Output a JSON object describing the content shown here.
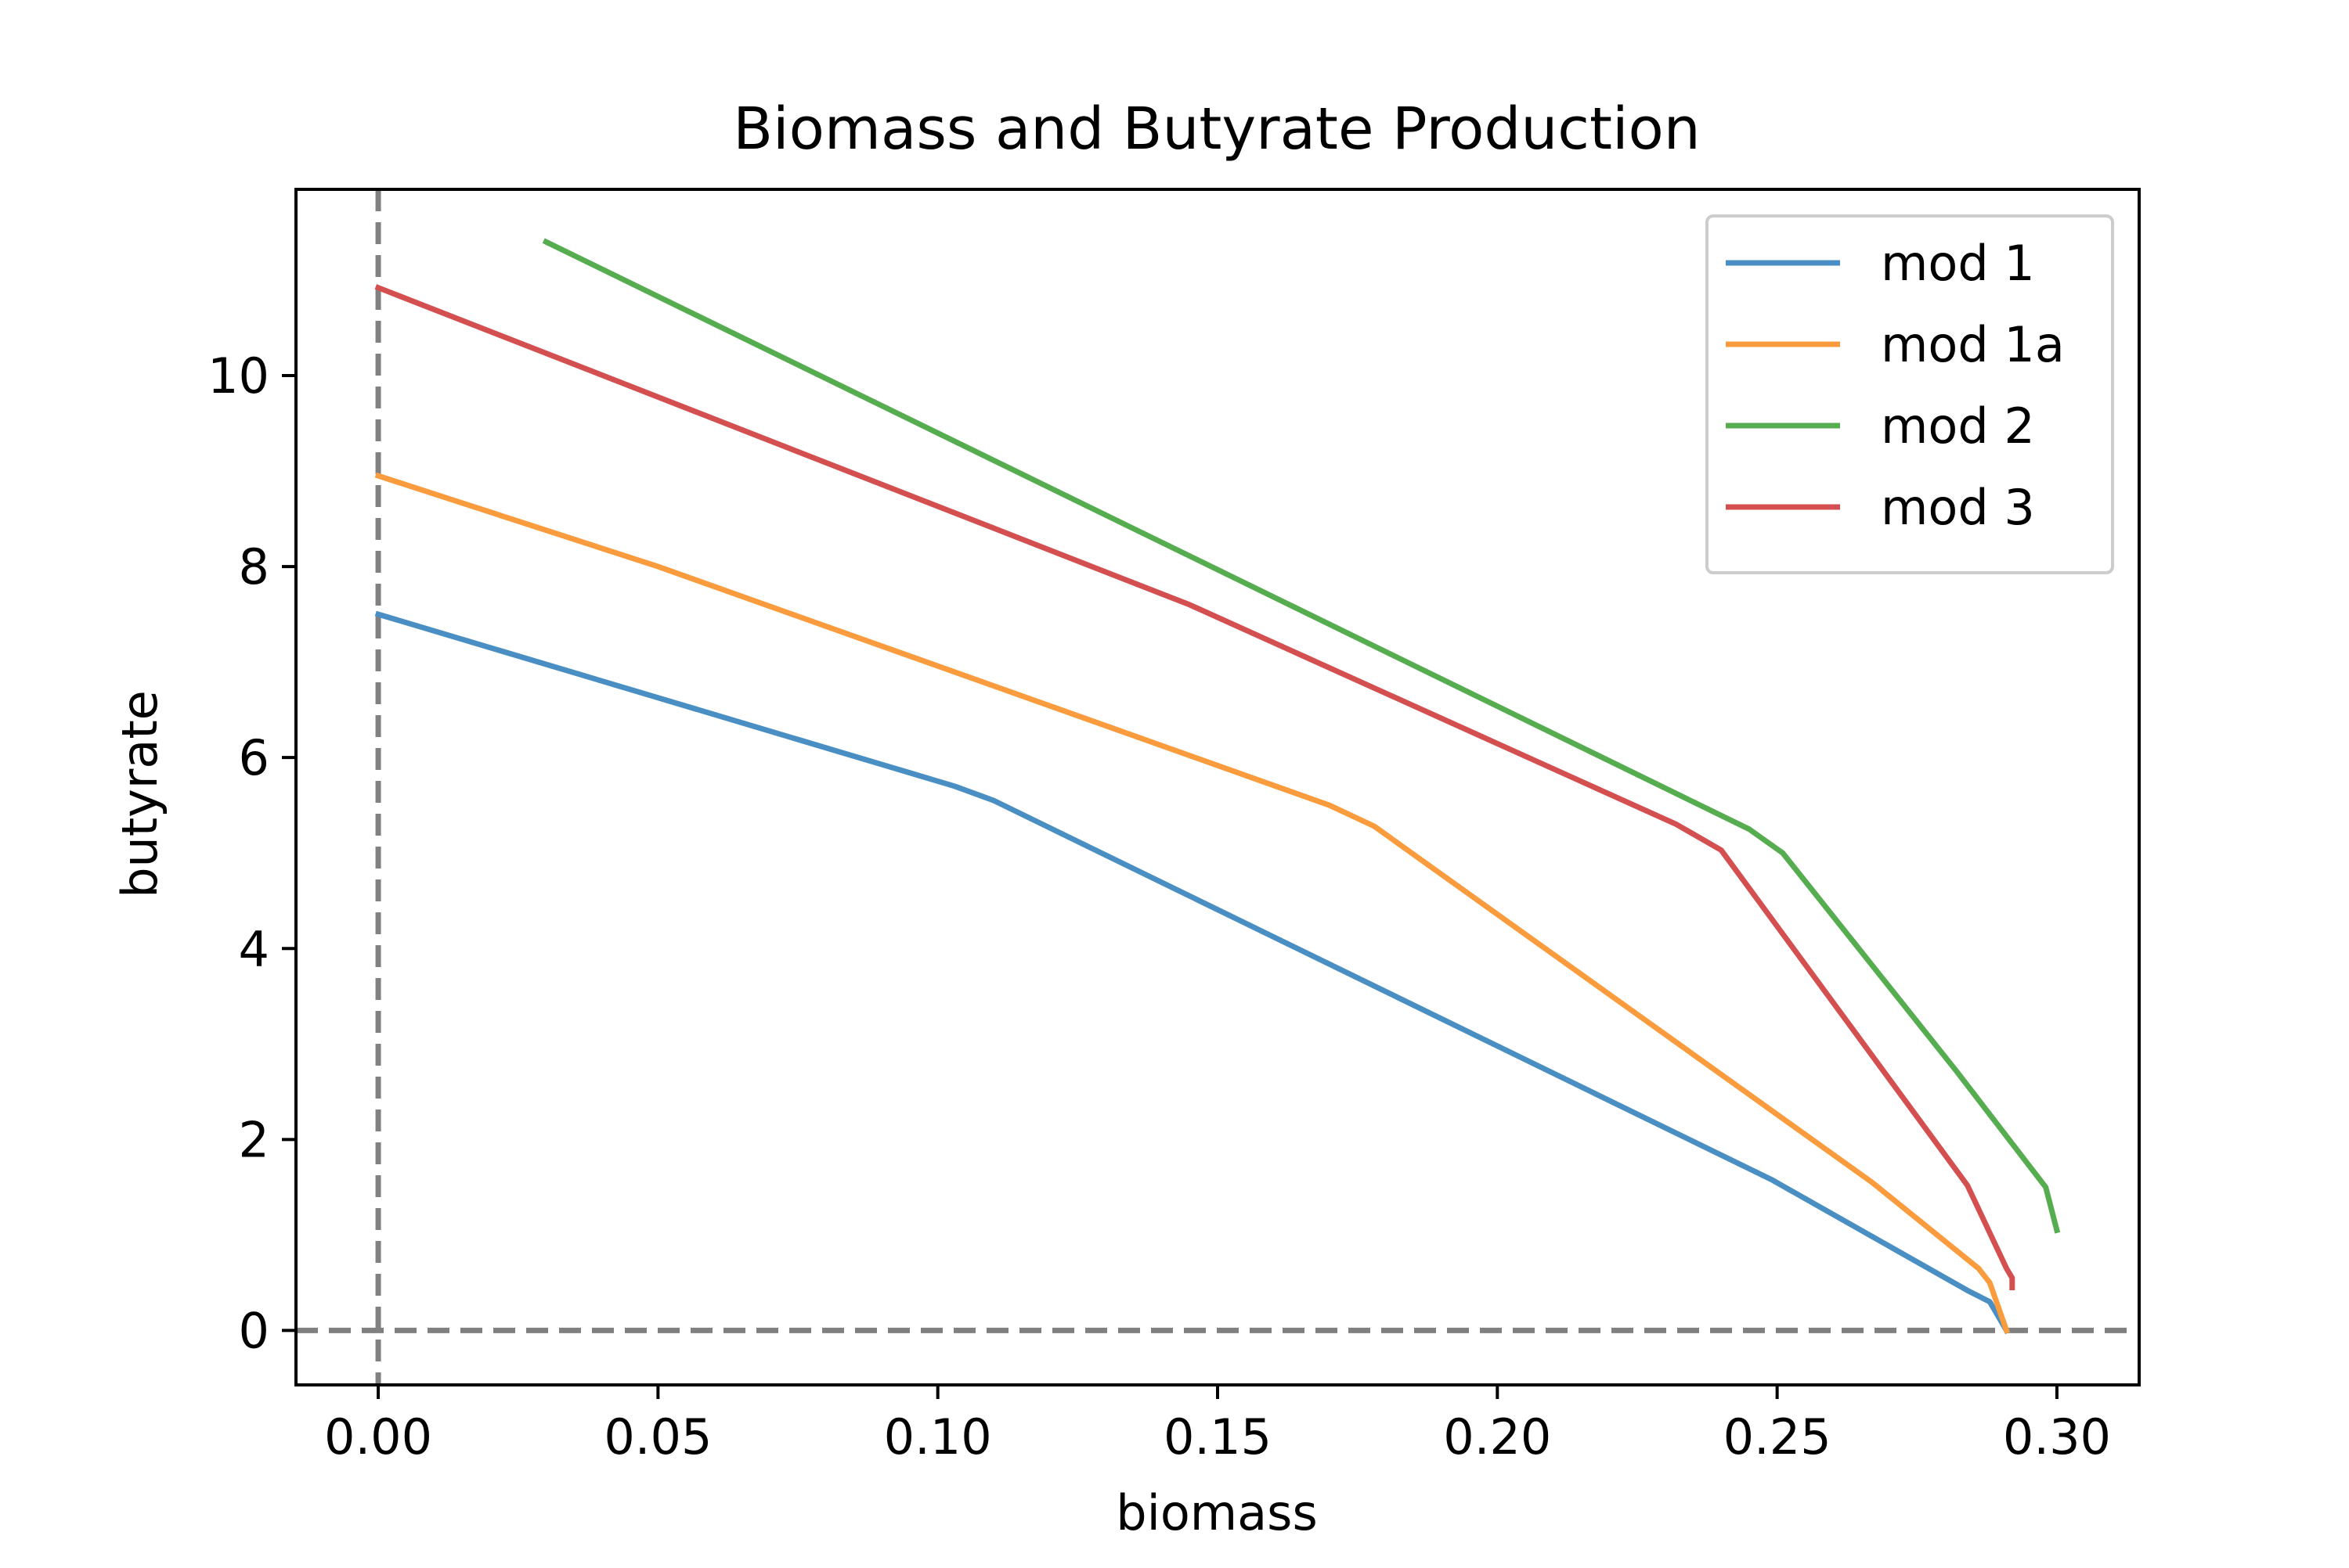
{
  "chart_data": {
    "type": "line",
    "title": "Biomass and Butyrate Production",
    "xlabel": "biomass",
    "ylabel": "butyrate",
    "xlim": [
      -0.0147,
      0.3147
    ],
    "ylim": [
      -0.57,
      11.95
    ],
    "xticks": [
      0.0,
      0.05,
      0.1,
      0.15,
      0.2,
      0.25,
      0.3
    ],
    "xtick_labels": [
      "0.00",
      "0.05",
      "0.10",
      "0.15",
      "0.20",
      "0.25",
      "0.30"
    ],
    "yticks": [
      0,
      2,
      4,
      6,
      8,
      10
    ],
    "ytick_labels": [
      "0",
      "2",
      "4",
      "6",
      "8",
      "10"
    ],
    "grid": false,
    "legend_position": "top-right",
    "reference_lines": [
      {
        "orientation": "vertical",
        "value": 0,
        "style": "dashed",
        "color": "#808080"
      },
      {
        "orientation": "horizontal",
        "value": 0,
        "style": "dashed",
        "color": "#808080"
      }
    ],
    "series": [
      {
        "name": "mod 1",
        "color": "#4a8fc3",
        "x": [
          0.0,
          0.103,
          0.11,
          0.249,
          0.284,
          0.288,
          0.291
        ],
        "y": [
          7.5,
          5.7,
          5.55,
          1.58,
          0.42,
          0.3,
          0.0
        ]
      },
      {
        "name": "mod 1a",
        "color": "#fa9c3e",
        "x": [
          0.0,
          0.05,
          0.17,
          0.178,
          0.267,
          0.286,
          0.288,
          0.291
        ],
        "y": [
          8.95,
          8.0,
          5.5,
          5.28,
          1.55,
          0.65,
          0.5,
          0.0
        ]
      },
      {
        "name": "mod 2",
        "color": "#56ad50",
        "x": [
          0.03,
          0.245,
          0.251,
          0.282,
          0.298,
          0.3
        ],
        "y": [
          11.4,
          5.25,
          5.0,
          2.72,
          1.5,
          1.05
        ]
      },
      {
        "name": "mod 3",
        "color": "#d44f4f",
        "x": [
          0.0,
          0.145,
          0.232,
          0.24,
          0.284,
          0.291,
          0.292,
          0.292
        ],
        "y": [
          10.92,
          7.6,
          5.3,
          5.03,
          1.52,
          0.65,
          0.55,
          0.45
        ]
      }
    ]
  }
}
